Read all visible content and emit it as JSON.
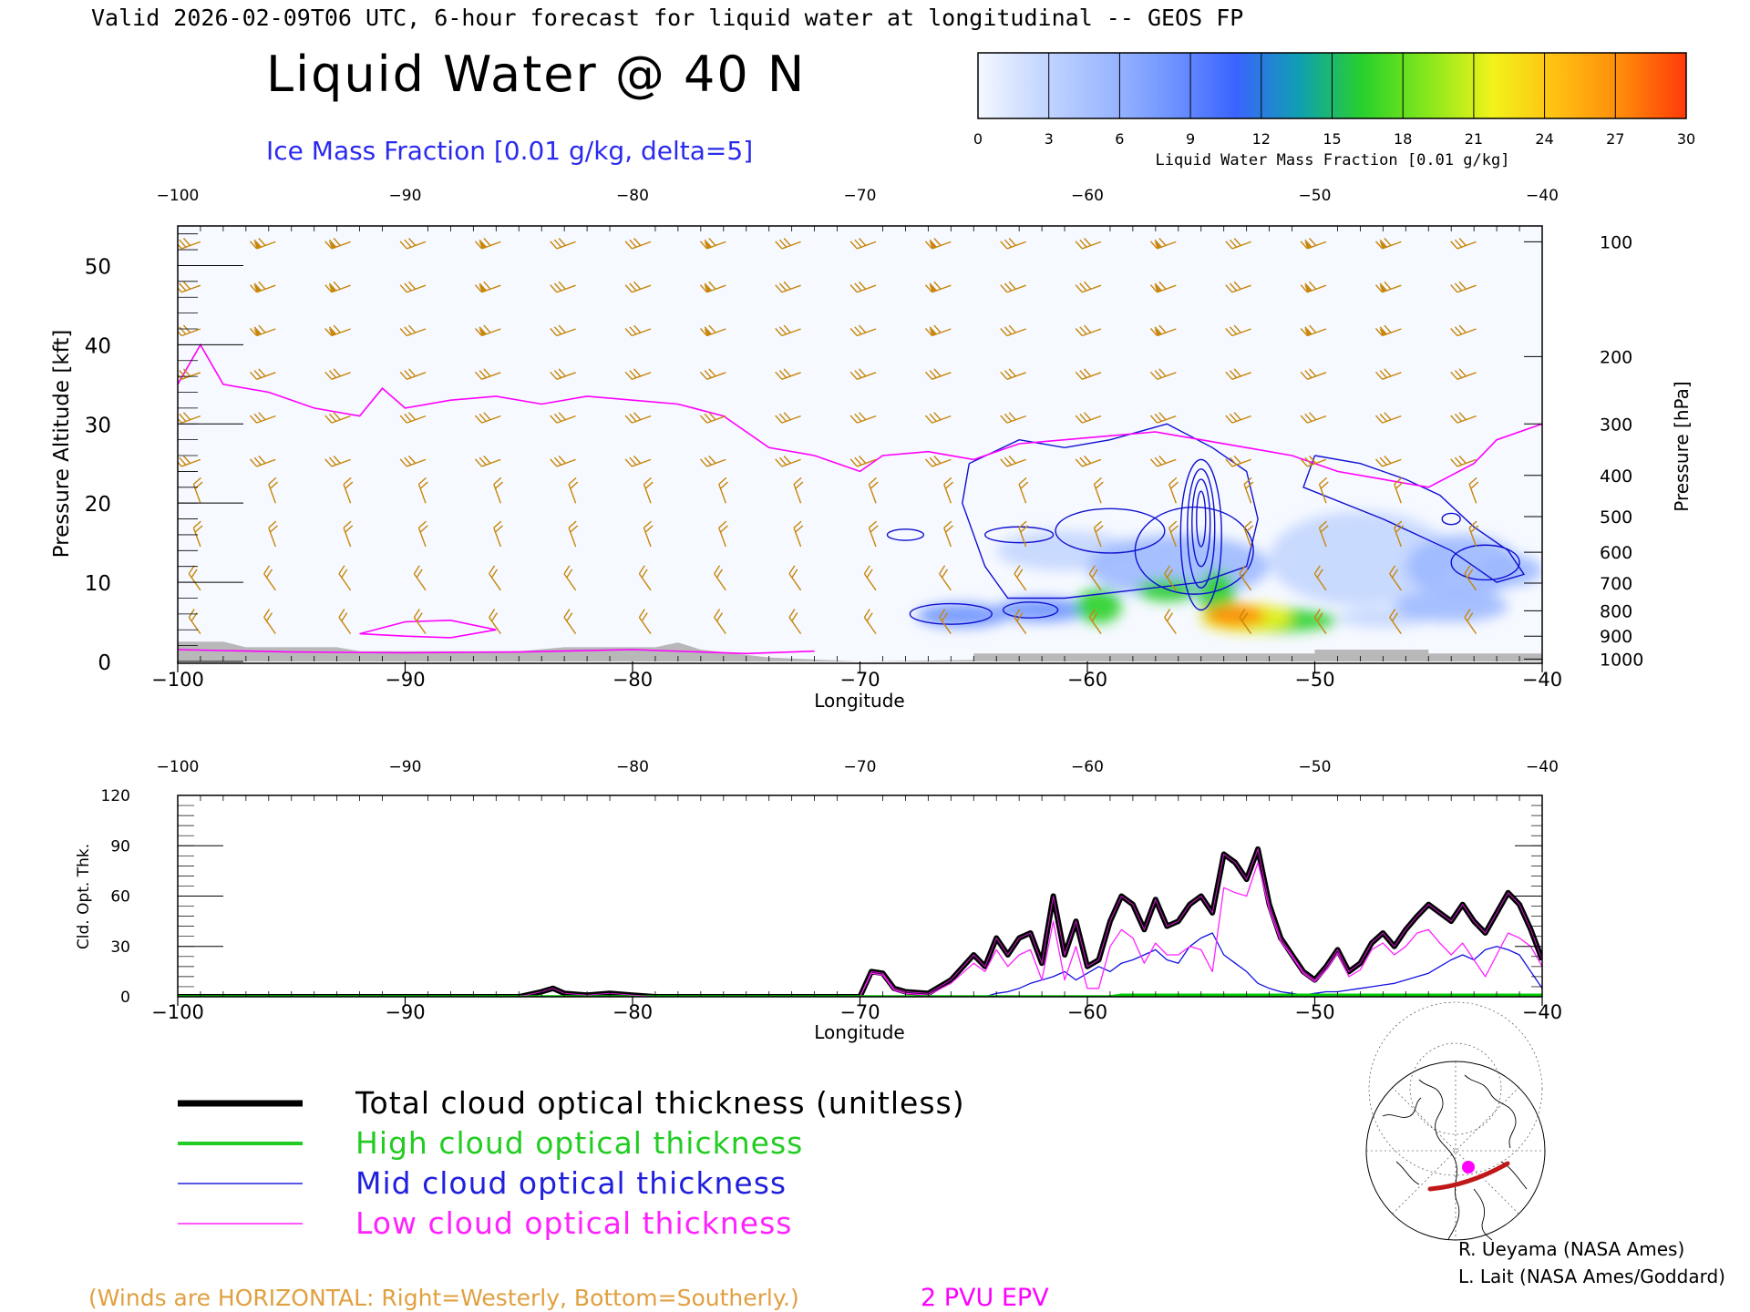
{
  "header": {
    "valid_line": "Valid 2026-02-09T06 UTC, 6-hour forecast for liquid water at longitudinal -- GEOS FP",
    "title": "Liquid Water @ 40 N",
    "ice_label": "Ice Mass Fraction [0.01 g/kg, delta=5]"
  },
  "colorbar": {
    "ticks": [
      "0",
      "3",
      "6",
      "9",
      "12",
      "15",
      "18",
      "21",
      "24",
      "27",
      "30"
    ],
    "label": "Liquid Water Mass Fraction [0.01 g/kg]",
    "colors": [
      "#f4f8ff",
      "#c4d6ff",
      "#9db9ff",
      "#6f94ff",
      "#3a63ff",
      "#0fa0b0",
      "#2ad12a",
      "#88e81c",
      "#f2f21a",
      "#ffbf12",
      "#ff8a0a",
      "#ff3a0a"
    ]
  },
  "colors": {
    "wind": "#c8860a",
    "epv": "#ff00ff",
    "ice_contour": "#1010d0",
    "total": "#000000",
    "high": "#00cc00",
    "mid": "#1010e0",
    "low": "#ff22ff",
    "terrain": "#b8b8b8"
  },
  "chart_data": [
    {
      "type": "heatmap",
      "title": "Liquid Water @ 40 N",
      "xlabel": "Longitude",
      "ylabel": "Pressure Altitude [kft]",
      "y2label": "Pressure [hPa]",
      "xlim": [
        -100,
        -40
      ],
      "ylim": [
        0,
        55
      ],
      "x_ticks": [
        "-100",
        "-90",
        "-80",
        "-70",
        "-60",
        "-50",
        "-40"
      ],
      "x_ticks_top": [
        "-100",
        "-90",
        "-80",
        "-70",
        "-60",
        "-50",
        "-40"
      ],
      "y_ticks": [
        "0",
        "10",
        "20",
        "30",
        "40",
        "50"
      ],
      "pressure_ticks": [
        {
          "label": "100",
          "kft": 53
        },
        {
          "label": "200",
          "kft": 38.5
        },
        {
          "label": "300",
          "kft": 30
        },
        {
          "label": "400",
          "kft": 23.5
        },
        {
          "label": "500",
          "kft": 18.3
        },
        {
          "label": "600",
          "kft": 13.8
        },
        {
          "label": "700",
          "kft": 9.9
        },
        {
          "label": "800",
          "kft": 6.4
        },
        {
          "label": "900",
          "kft": 3.2
        },
        {
          "label": "1000",
          "kft": 0.3
        }
      ],
      "liquid_water_blobs": [
        {
          "lon": -53.5,
          "kft": 5.8,
          "rx": 1.3,
          "ry": 1.4,
          "value": 28
        },
        {
          "lon": -53.0,
          "kft": 5.5,
          "rx": 2.0,
          "ry": 1.8,
          "value": 22
        },
        {
          "lon": -52.0,
          "kft": 5.2,
          "rx": 3.0,
          "ry": 1.5,
          "value": 16
        },
        {
          "lon": -54.3,
          "kft": 8.5,
          "rx": 0.8,
          "ry": 3.0,
          "value": 17
        },
        {
          "lon": -56.5,
          "kft": 9.0,
          "rx": 1.3,
          "ry": 1.4,
          "value": 15
        },
        {
          "lon": -59.5,
          "kft": 7.0,
          "rx": 1.0,
          "ry": 2.2,
          "value": 15
        },
        {
          "lon": -62.0,
          "kft": 6.5,
          "rx": 2.0,
          "ry": 1.5,
          "value": 9
        },
        {
          "lon": -65.5,
          "kft": 5.8,
          "rx": 2.0,
          "ry": 1.5,
          "value": 7
        },
        {
          "lon": -61.0,
          "kft": 14.0,
          "rx": 3.0,
          "ry": 2.5,
          "value": 4
        },
        {
          "lon": -56.0,
          "kft": 12.0,
          "rx": 4.0,
          "ry": 4.0,
          "value": 5
        },
        {
          "lon": -48.0,
          "kft": 13.0,
          "rx": 4.0,
          "ry": 6.0,
          "value": 4
        },
        {
          "lon": -43.5,
          "kft": 12.0,
          "rx": 2.5,
          "ry": 4.0,
          "value": 5
        },
        {
          "lon": -44.0,
          "kft": 7.0,
          "rx": 2.5,
          "ry": 2.0,
          "value": 5
        },
        {
          "lon": -47.0,
          "kft": 5.5,
          "rx": 2.0,
          "ry": 1.2,
          "value": 4
        },
        {
          "lon": -41.5,
          "kft": 11.5,
          "rx": 1.5,
          "ry": 2.0,
          "value": 5
        }
      ],
      "ice_contours": [
        {
          "lon": -55.0,
          "kft": 16.0,
          "rx": 0.9,
          "ry": 9.5
        },
        {
          "lon": -55.0,
          "kft": 16.8,
          "rx": 0.6,
          "ry": 7.5
        },
        {
          "lon": -55.0,
          "kft": 17.5,
          "rx": 0.4,
          "ry": 5.5
        },
        {
          "lon": -55.0,
          "kft": 18.0,
          "rx": 0.2,
          "ry": 3.5
        },
        {
          "lon": -55.3,
          "kft": 14.0,
          "rx": 2.6,
          "ry": 5.5
        },
        {
          "lon": -59.0,
          "kft": 16.5,
          "rx": 2.4,
          "ry": 2.8
        },
        {
          "lon": -63.0,
          "kft": 16.0,
          "rx": 1.5,
          "ry": 1.0
        },
        {
          "lon": -66.0,
          "kft": 6.0,
          "rx": 1.8,
          "ry": 1.3
        },
        {
          "lon": -62.5,
          "kft": 6.5,
          "rx": 1.2,
          "ry": 1.0
        },
        {
          "lon": -68.0,
          "kft": 16.0,
          "rx": 0.8,
          "ry": 0.7
        },
        {
          "lon": -42.5,
          "kft": 12.5,
          "rx": 1.5,
          "ry": 2.2
        },
        {
          "lon": -44.0,
          "kft": 18.0,
          "rx": 0.4,
          "ry": 0.7
        }
      ],
      "ice_outline_outer": [
        {
          "lon": -65.2,
          "kft": 25
        },
        {
          "lon": -63.0,
          "kft": 28
        },
        {
          "lon": -61.0,
          "kft": 27
        },
        {
          "lon": -59.0,
          "kft": 28
        },
        {
          "lon": -56.5,
          "kft": 30
        },
        {
          "lon": -54.5,
          "kft": 27
        },
        {
          "lon": -53.0,
          "kft": 24
        },
        {
          "lon": -52.5,
          "kft": 18
        },
        {
          "lon": -53.0,
          "kft": 12
        },
        {
          "lon": -55.0,
          "kft": 10
        },
        {
          "lon": -58.0,
          "kft": 9
        },
        {
          "lon": -61.0,
          "kft": 8
        },
        {
          "lon": -63.5,
          "kft": 8
        },
        {
          "lon": -64.5,
          "kft": 12
        },
        {
          "lon": -65.5,
          "kft": 20
        },
        {
          "lon": -65.2,
          "kft": 25
        }
      ],
      "ice_outline_right": [
        {
          "lon": -50.0,
          "kft": 26
        },
        {
          "lon": -48.0,
          "kft": 25
        },
        {
          "lon": -46.0,
          "kft": 23
        },
        {
          "lon": -44.5,
          "kft": 21
        },
        {
          "lon": -43.0,
          "kft": 17
        },
        {
          "lon": -41.5,
          "kft": 14
        },
        {
          "lon": -40.8,
          "kft": 11
        },
        {
          "lon": -42.0,
          "kft": 10
        },
        {
          "lon": -44.0,
          "kft": 14
        },
        {
          "lon": -47.0,
          "kft": 18
        },
        {
          "lon": -50.5,
          "kft": 22
        },
        {
          "lon": -50.0,
          "kft": 26
        }
      ],
      "epv_2pvu": [
        {
          "lon": -100,
          "kft": 35
        },
        {
          "lon": -99,
          "kft": 40
        },
        {
          "lon": -98,
          "kft": 35
        },
        {
          "lon": -96,
          "kft": 34
        },
        {
          "lon": -94,
          "kft": 32
        },
        {
          "lon": -92,
          "kft": 31
        },
        {
          "lon": -91,
          "kft": 34.5
        },
        {
          "lon": -90,
          "kft": 32
        },
        {
          "lon": -88,
          "kft": 33
        },
        {
          "lon": -86,
          "kft": 33.5
        },
        {
          "lon": -84,
          "kft": 32.5
        },
        {
          "lon": -82,
          "kft": 33.5
        },
        {
          "lon": -80,
          "kft": 33
        },
        {
          "lon": -78,
          "kft": 32.5
        },
        {
          "lon": -76,
          "kft": 31
        },
        {
          "lon": -74,
          "kft": 27
        },
        {
          "lon": -72,
          "kft": 26
        },
        {
          "lon": -70,
          "kft": 24
        },
        {
          "lon": -69,
          "kft": 26
        },
        {
          "lon": -67,
          "kft": 26.5
        },
        {
          "lon": -65,
          "kft": 25.5
        },
        {
          "lon": -63,
          "kft": 27.5
        },
        {
          "lon": -61,
          "kft": 28
        },
        {
          "lon": -59,
          "kft": 28.5
        },
        {
          "lon": -57,
          "kft": 29
        },
        {
          "lon": -55,
          "kft": 28
        },
        {
          "lon": -53,
          "kft": 27
        },
        {
          "lon": -51,
          "kft": 26
        },
        {
          "lon": -49,
          "kft": 24
        },
        {
          "lon": -47,
          "kft": 23
        },
        {
          "lon": -45,
          "kft": 22
        },
        {
          "lon": -43,
          "kft": 25
        },
        {
          "lon": -42,
          "kft": 28
        },
        {
          "lon": -40,
          "kft": 30
        }
      ],
      "epv_low": [
        {
          "lon": -92,
          "kft": 3.5
        },
        {
          "lon": -90,
          "kft": 5
        },
        {
          "lon": -88,
          "kft": 5.2
        },
        {
          "lon": -86,
          "kft": 4
        },
        {
          "lon": -88,
          "kft": 3.0
        },
        {
          "lon": -90,
          "kft": 3.2
        },
        {
          "lon": -92,
          "kft": 3.5
        }
      ],
      "epv_surface": [
        {
          "lon": -100,
          "kft": 1.5
        },
        {
          "lon": -95,
          "kft": 1.2
        },
        {
          "lon": -90,
          "kft": 1.1
        },
        {
          "lon": -85,
          "kft": 1.2
        },
        {
          "lon": -80,
          "kft": 1.5
        },
        {
          "lon": -75,
          "kft": 1.0
        },
        {
          "lon": -72,
          "kft": 1.3
        }
      ],
      "terrain": [
        {
          "lon": -100,
          "kft": 2.5
        },
        {
          "lon": -98,
          "kft": 2.5
        },
        {
          "lon": -97,
          "kft": 1.8
        },
        {
          "lon": -93,
          "kft": 1.8
        },
        {
          "lon": -92,
          "kft": 1.3
        },
        {
          "lon": -85,
          "kft": 1.3
        },
        {
          "lon": -83,
          "kft": 1.8
        },
        {
          "lon": -79,
          "kft": 1.8
        },
        {
          "lon": -78,
          "kft": 2.4
        },
        {
          "lon": -77,
          "kft": 1.5
        },
        {
          "lon": -74,
          "kft": 0.5
        },
        {
          "lon": -70,
          "kft": 0
        },
        {
          "lon": -65,
          "kft": 0.2
        },
        {
          "lon": -65,
          "kft": 1.0
        },
        {
          "lon": -50,
          "kft": 1.0
        },
        {
          "lon": -50,
          "kft": 1.5
        },
        {
          "lon": -45,
          "kft": 1.5
        },
        {
          "lon": -45,
          "kft": 1.0
        },
        {
          "lon": -40,
          "kft": 1.0
        },
        {
          "lon": -40,
          "kft": 0
        }
      ]
    },
    {
      "type": "line",
      "xlabel": "Longitude",
      "ylabel": "Cld. Opt. Thk.",
      "xlim": [
        -100,
        -40
      ],
      "ylim": [
        0,
        120
      ],
      "y_ticks": [
        "0",
        "30",
        "60",
        "90",
        "120"
      ],
      "x_ticks": [
        "-100",
        "-90",
        "-80",
        "-70",
        "-60",
        "-50",
        "-40"
      ],
      "x_ticks_top": [
        "-100",
        "-90",
        "-80",
        "-70",
        "-60",
        "-50",
        "-40"
      ],
      "x": [
        -100,
        -85,
        -84,
        -83.5,
        -83,
        -82,
        -81,
        -80,
        -79,
        -70,
        -69.5,
        -69,
        -68.5,
        -68,
        -67,
        -66,
        -65,
        -64.5,
        -64,
        -63.5,
        -63,
        -62.5,
        -62,
        -61.5,
        -61,
        -60.5,
        -60,
        -59.5,
        -59,
        -58.5,
        -58,
        -57.5,
        -57,
        -56.5,
        -56,
        -55.5,
        -55,
        -54.5,
        -54,
        -53.5,
        -53,
        -52.5,
        -52,
        -51.5,
        -51,
        -50.5,
        -50,
        -49.5,
        -49,
        -48.5,
        -48,
        -47.5,
        -47,
        -46.5,
        -46,
        -45.5,
        -45,
        -44.5,
        -44,
        -43.5,
        -43,
        -42.5,
        -42,
        -41.5,
        -41,
        -40.5,
        -40
      ],
      "series": [
        {
          "name": "Total cloud optical thickness (unitless)",
          "values": [
            0,
            0,
            3,
            5,
            2,
            1,
            2,
            1,
            0,
            0,
            15,
            14,
            5,
            3,
            2,
            10,
            25,
            18,
            35,
            25,
            35,
            38,
            20,
            60,
            25,
            45,
            18,
            22,
            45,
            60,
            55,
            40,
            58,
            42,
            45,
            55,
            60,
            50,
            85,
            80,
            70,
            88,
            55,
            35,
            25,
            15,
            10,
            18,
            28,
            15,
            20,
            32,
            38,
            30,
            40,
            48,
            55,
            50,
            45,
            55,
            45,
            38,
            50,
            62,
            55,
            40,
            22
          ]
        },
        {
          "name": "High cloud optical thickness",
          "values": [
            0,
            0,
            0,
            0,
            0,
            0,
            0,
            0,
            0,
            0,
            0,
            0,
            0,
            0,
            0,
            0,
            0,
            0,
            0,
            0,
            0,
            0,
            0,
            0,
            0,
            0,
            0,
            0,
            0,
            1,
            1,
            1,
            1,
            1,
            1,
            1,
            1,
            1,
            1,
            1,
            1,
            1,
            1,
            1,
            1,
            1,
            1,
            1,
            1,
            1,
            1,
            1,
            1,
            1,
            1,
            1,
            1,
            1,
            1,
            1,
            1,
            1,
            1,
            1,
            1,
            1,
            1
          ]
        },
        {
          "name": "Mid cloud optical thickness",
          "values": [
            0,
            0,
            0,
            0,
            0,
            0,
            0,
            0,
            0,
            0,
            0,
            0,
            0,
            0,
            0,
            0,
            0,
            0,
            2,
            3,
            5,
            8,
            10,
            12,
            15,
            10,
            14,
            18,
            15,
            20,
            22,
            25,
            28,
            22,
            20,
            30,
            35,
            38,
            25,
            20,
            15,
            8,
            5,
            3,
            2,
            1,
            2,
            3,
            3,
            4,
            5,
            6,
            7,
            8,
            10,
            12,
            14,
            18,
            22,
            25,
            22,
            28,
            30,
            28,
            25,
            15,
            5
          ]
        },
        {
          "name": "Low cloud optical thickness",
          "values": [
            0,
            0,
            0,
            0,
            0,
            0,
            0,
            0,
            0,
            0,
            14,
            13,
            4,
            2,
            1,
            8,
            20,
            15,
            28,
            18,
            25,
            28,
            10,
            45,
            10,
            30,
            5,
            5,
            30,
            40,
            35,
            20,
            32,
            25,
            25,
            30,
            28,
            15,
            65,
            62,
            60,
            80,
            52,
            33,
            24,
            14,
            9,
            16,
            26,
            12,
            16,
            28,
            32,
            25,
            30,
            38,
            40,
            32,
            25,
            32,
            22,
            12,
            25,
            38,
            35,
            30,
            18
          ]
        }
      ]
    }
  ],
  "legend": [
    {
      "label": "Total cloud optical thickness (unitless)",
      "color": "#000000",
      "width": 7
    },
    {
      "label": "High cloud optical thickness",
      "color": "#22cc22",
      "width": 4
    },
    {
      "label": "Mid cloud optical thickness",
      "color": "#2020dd",
      "width": 1.5
    },
    {
      "label": "Low cloud optical thickness",
      "color": "#ff22ff",
      "width": 1.5
    }
  ],
  "footer": {
    "winds_note": "(Winds are HORIZONTAL: Right=Westerly, Bottom=Southerly.)",
    "epv_note": "2 PVU EPV",
    "credit1": "R. Ueyama (NASA Ames)",
    "credit2": "L. Lait (NASA Ames/Goddard)"
  }
}
